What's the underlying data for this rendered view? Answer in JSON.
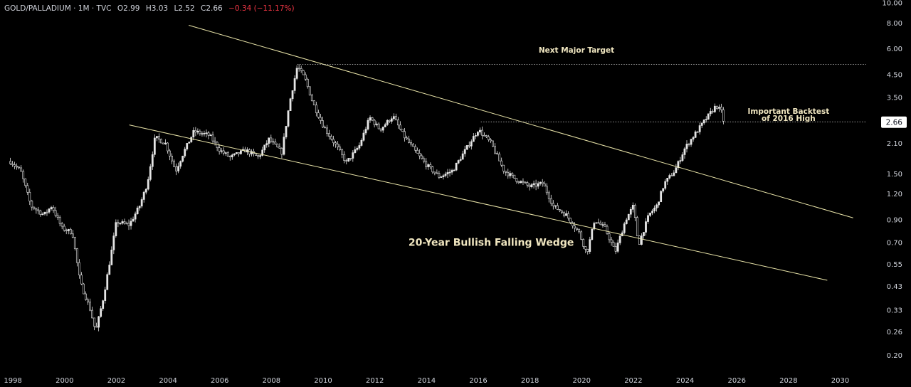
{
  "header": {
    "symbol": "GOLD/PALLADIUM · 1M · TVC",
    "open": "O2.99",
    "high": "H3.03",
    "low": "L2.52",
    "close": "C2.66",
    "change": "−0.34 (−11.17%)"
  },
  "colors": {
    "background": "#000000",
    "candle": "#e6e6e6",
    "trendline": "#e8e3a8",
    "dotted": "#cfcfcf",
    "text": "#d1d4dc",
    "annotation": "#f0e6c0",
    "badge_bg": "#ffffff"
  },
  "chart_data": {
    "type": "candlestick",
    "y_scale": "log",
    "ylim": [
      0.19,
      10.0
    ],
    "xlim": [
      1997.5,
      2031.5
    ],
    "x_ticks": [
      "1998",
      "2000",
      "2002",
      "2004",
      "2006",
      "2008",
      "2010",
      "2012",
      "2014",
      "2016",
      "2018",
      "2020",
      "2022",
      "2024",
      "2026",
      "2028",
      "2030"
    ],
    "y_ticks": [
      "10.00",
      "8.00",
      "6.00",
      "4.50",
      "3.50",
      "2.66",
      "2.10",
      "1.50",
      "1.20",
      "0.90",
      "0.70",
      "0.55",
      "0.43",
      "0.33",
      "0.26",
      "0.20"
    ],
    "last_price": "2.66",
    "price_path": [
      [
        1997.9,
        1.72
      ],
      [
        1998.3,
        1.55
      ],
      [
        1998.7,
        1.05
      ],
      [
        1999.2,
        0.95
      ],
      [
        1999.5,
        1.05
      ],
      [
        1999.9,
        0.82
      ],
      [
        2000.3,
        0.78
      ],
      [
        2000.6,
        0.45
      ],
      [
        2001.0,
        0.33
      ],
      [
        2001.2,
        0.26
      ],
      [
        2001.5,
        0.38
      ],
      [
        2001.8,
        0.62
      ],
      [
        2002.0,
        0.88
      ],
      [
        2002.5,
        0.85
      ],
      [
        2002.9,
        1.05
      ],
      [
        2003.2,
        1.35
      ],
      [
        2003.5,
        2.25
      ],
      [
        2003.9,
        2.1
      ],
      [
        2004.3,
        1.55
      ],
      [
        2004.6,
        1.9
      ],
      [
        2005.0,
        2.4
      ],
      [
        2005.6,
        2.3
      ],
      [
        2006.0,
        1.95
      ],
      [
        2006.4,
        1.8
      ],
      [
        2007.0,
        1.95
      ],
      [
        2007.5,
        1.8
      ],
      [
        2007.9,
        2.2
      ],
      [
        2008.4,
        1.9
      ],
      [
        2008.7,
        3.3
      ],
      [
        2009.0,
        4.95
      ],
      [
        2009.3,
        4.3
      ],
      [
        2009.6,
        3.3
      ],
      [
        2010.0,
        2.55
      ],
      [
        2010.5,
        2.05
      ],
      [
        2010.9,
        1.7
      ],
      [
        2011.4,
        2.05
      ],
      [
        2011.8,
        2.8
      ],
      [
        2012.2,
        2.45
      ],
      [
        2012.7,
        2.85
      ],
      [
        2013.1,
        2.3
      ],
      [
        2013.6,
        1.9
      ],
      [
        2014.0,
        1.65
      ],
      [
        2014.5,
        1.45
      ],
      [
        2015.0,
        1.55
      ],
      [
        2015.5,
        1.95
      ],
      [
        2016.0,
        2.45
      ],
      [
        2016.5,
        2.1
      ],
      [
        2017.0,
        1.55
      ],
      [
        2017.5,
        1.4
      ],
      [
        2018.0,
        1.3
      ],
      [
        2018.5,
        1.35
      ],
      [
        2018.9,
        1.05
      ],
      [
        2019.4,
        0.95
      ],
      [
        2019.9,
        0.78
      ],
      [
        2020.2,
        0.62
      ],
      [
        2020.5,
        0.9
      ],
      [
        2020.9,
        0.82
      ],
      [
        2021.3,
        0.63
      ],
      [
        2021.7,
        0.9
      ],
      [
        2022.0,
        1.05
      ],
      [
        2022.2,
        0.68
      ],
      [
        2022.6,
        0.95
      ],
      [
        2022.9,
        1.05
      ],
      [
        2023.2,
        1.35
      ],
      [
        2023.6,
        1.55
      ],
      [
        2024.0,
        2.0
      ],
      [
        2024.4,
        2.35
      ],
      [
        2024.8,
        2.75
      ],
      [
        2025.2,
        3.2
      ],
      [
        2025.4,
        2.99
      ],
      [
        2025.5,
        2.66
      ]
    ],
    "trendlines": [
      {
        "name": "wedge-upper",
        "from": [
          2004.8,
          7.8
        ],
        "to": [
          2030.5,
          0.92
        ]
      },
      {
        "name": "wedge-lower",
        "from": [
          2002.5,
          2.58
        ],
        "to": [
          2029.5,
          0.46
        ]
      },
      {
        "name": "next-target-level",
        "from": [
          2009.0,
          5.05
        ],
        "to": [
          2031.0,
          5.05
        ],
        "style": "dotted"
      },
      {
        "name": "2016-high-level",
        "from": [
          2016.1,
          2.67
        ],
        "to": [
          2031.0,
          2.67
        ],
        "style": "dotted"
      }
    ],
    "annotations": [
      {
        "name": "next-major-target",
        "text": "Next Major Target",
        "x": 2019.8,
        "y": 5.75
      },
      {
        "name": "important-backtest",
        "text": "Important Backtest",
        "x": 2028.0,
        "y": 2.92
      },
      {
        "name": "of-2016-high",
        "text": "of 2016 High",
        "x": 2028.0,
        "y": 2.7
      },
      {
        "name": "falling-wedge-label",
        "text": "20-Year Bullish Falling Wedge",
        "x": 2016.5,
        "y": 0.675
      }
    ]
  }
}
